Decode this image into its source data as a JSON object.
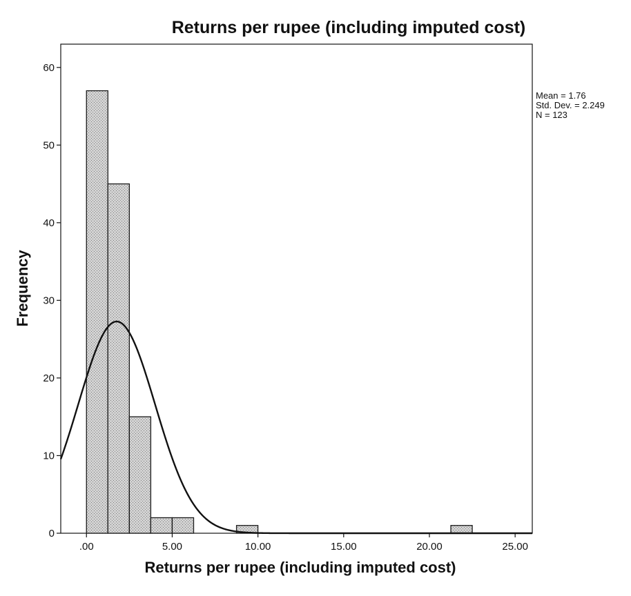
{
  "chart_data": {
    "type": "bar",
    "subtype": "histogram",
    "title": "Returns per rupee (including imputed cost)",
    "xlabel": "Returns per rupee (including imputed cost)",
    "ylabel": "Frequency",
    "xlim": [
      -1.5,
      26.0
    ],
    "ylim": [
      0,
      63
    ],
    "xticks": [
      0,
      5,
      10,
      15,
      20,
      25
    ],
    "xtick_labels": [
      ".00",
      "5.00",
      "10.00",
      "15.00",
      "20.00",
      "25.00"
    ],
    "yticks": [
      0,
      10,
      20,
      30,
      40,
      50,
      60
    ],
    "ytick_labels": [
      "0",
      "10",
      "20",
      "30",
      "40",
      "50",
      "60"
    ],
    "bin_width": 1.25,
    "bins": [
      {
        "start": 0.0,
        "end": 1.25,
        "count": 57
      },
      {
        "start": 1.25,
        "end": 2.5,
        "count": 45
      },
      {
        "start": 2.5,
        "end": 3.75,
        "count": 15
      },
      {
        "start": 3.75,
        "end": 5.0,
        "count": 2
      },
      {
        "start": 5.0,
        "end": 6.25,
        "count": 2
      },
      {
        "start": 8.75,
        "end": 10.0,
        "count": 1
      },
      {
        "start": 21.25,
        "end": 22.5,
        "count": 1
      }
    ],
    "normal_curve": {
      "mean": 1.76,
      "std_dev": 2.249,
      "n": 123
    },
    "stats": {
      "mean": "Mean = 1.76",
      "std_dev": "Std. Dev. = 2.249",
      "n": "N = 123"
    },
    "grid": false,
    "legend": "none",
    "colors": {
      "bar_fill": "#c4c4c4",
      "bar_stroke": "#1a1a1a",
      "curve": "#111111",
      "axis": "#111111"
    }
  }
}
